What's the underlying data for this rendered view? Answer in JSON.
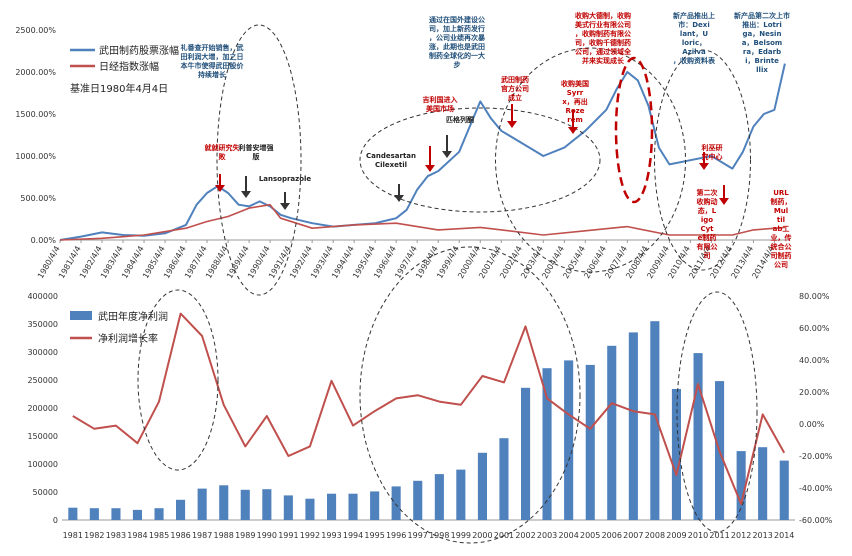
{
  "chart_data": [
    {
      "type": "line",
      "series": [
        {
          "name": "武田制药股票涨幅",
          "color": "#4f81bd",
          "points": [
            [
              "1980-04-04",
              0
            ],
            [
              "1981-04-04",
              40
            ],
            [
              "1982-04-04",
              90
            ],
            [
              "1983-04-04",
              60
            ],
            [
              "1984-04-04",
              50
            ],
            [
              "1985-04-04",
              80
            ],
            [
              "1986-04-04",
              180
            ],
            [
              "1986-10-04",
              420
            ],
            [
              "1987-04-04",
              560
            ],
            [
              "1987-10-04",
              640
            ],
            [
              "1988-04-04",
              560
            ],
            [
              "1988-10-04",
              420
            ],
            [
              "1989-04-04",
              400
            ],
            [
              "1989-10-04",
              460
            ],
            [
              "1990-04-04",
              400
            ],
            [
              "1990-10-04",
              300
            ],
            [
              "1991-04-04",
              260
            ],
            [
              "1992-04-04",
              200
            ],
            [
              "1993-04-04",
              160
            ],
            [
              "1994-04-04",
              180
            ],
            [
              "1995-04-04",
              200
            ],
            [
              "1996-04-04",
              260
            ],
            [
              "1996-10-04",
              360
            ],
            [
              "1997-04-04",
              600
            ],
            [
              "1997-10-04",
              760
            ],
            [
              "1998-04-04",
              820
            ],
            [
              "1999-04-04",
              1050
            ],
            [
              "1999-10-04",
              1350
            ],
            [
              "2000-04-04",
              1650
            ],
            [
              "2000-10-04",
              1450
            ],
            [
              "2001-04-04",
              1300
            ],
            [
              "2002-04-04",
              1150
            ],
            [
              "2003-04-04",
              1000
            ],
            [
              "2004-04-04",
              1100
            ],
            [
              "2005-04-04",
              1300
            ],
            [
              "2006-04-04",
              1550
            ],
            [
              "2006-10-04",
              1800
            ],
            [
              "2007-04-04",
              2000
            ],
            [
              "2007-10-04",
              1900
            ],
            [
              "2008-04-04",
              1600
            ],
            [
              "2008-10-04",
              1100
            ],
            [
              "2009-04-04",
              900
            ],
            [
              "2010-04-04",
              950
            ],
            [
              "2011-04-04",
              1000
            ],
            [
              "2012-04-04",
              850
            ],
            [
              "2012-10-04",
              1050
            ],
            [
              "2013-04-04",
              1350
            ],
            [
              "2013-10-04",
              1500
            ],
            [
              "2014-04-04",
              1550
            ],
            [
              "2014-10-04",
              2100
            ]
          ]
        },
        {
          "name": "日经指数涨幅",
          "color": "#c0504d",
          "points": [
            [
              "1980-04-04",
              0
            ],
            [
              "1982-04-04",
              20
            ],
            [
              "1984-04-04",
              60
            ],
            [
              "1986-04-04",
              140
            ],
            [
              "1987-04-04",
              220
            ],
            [
              "1988-04-04",
              280
            ],
            [
              "1989-04-04",
              380
            ],
            [
              "1990-04-04",
              420
            ],
            [
              "1990-10-04",
              260
            ],
            [
              "1992-04-04",
              140
            ],
            [
              "1994-04-04",
              180
            ],
            [
              "1996-04-04",
              200
            ],
            [
              "1998-04-04",
              120
            ],
            [
              "2000-04-04",
              150
            ],
            [
              "2003-04-04",
              60
            ],
            [
              "2005-04-04",
              110
            ],
            [
              "2007-04-04",
              160
            ],
            [
              "2009-04-04",
              60
            ],
            [
              "2012-04-04",
              60
            ],
            [
              "2013-04-04",
              120
            ],
            [
              "2014-10-04",
              150
            ]
          ]
        }
      ],
      "xlim": [
        "1980-04-04",
        "2014-12-31"
      ],
      "x_ticks": [
        "1980/4/4",
        "1981/4/4",
        "1982/4/4",
        "1983/4/4",
        "1984/4/4",
        "1985/4/4",
        "1986/4/4",
        "1987/4/4",
        "1988/4/4",
        "1989/4/4",
        "1990/4/4",
        "1991/4/4",
        "1992/4/4",
        "1993/4/4",
        "1994/4/4",
        "1995/4/4",
        "1996/4/4",
        "1997/4/4",
        "1998/4/4",
        "1999/4/4",
        "2000/4/4",
        "2001/4/4",
        "2002/4/4",
        "2003/4/4",
        "2004/4/4",
        "2005/4/4",
        "2006/4/4",
        "2007/4/4",
        "2008/4/4",
        "2009/4/4",
        "2010/4/4",
        "2011/4/4",
        "2012/4/4",
        "2013/4/4",
        "2014/4/4"
      ],
      "ylim": [
        0,
        2500
      ],
      "y_ticks": [
        "0.00%",
        "500.00%",
        "1000.00%",
        "1500.00%",
        "2000.00%",
        "2500.00%"
      ],
      "note": "基准日1980年4月4日",
      "annotations": [
        {
          "text": "礼番查开始销售，武田利润大增，加之日本牛市使得武田股价持续增长",
          "color": "#1f4e79"
        },
        {
          "text": "就就研究失败",
          "color": "#c00000"
        },
        {
          "text": "利普安增强版",
          "color": "#222222"
        },
        {
          "text": "Lansoprazole",
          "color": "#222222"
        },
        {
          "text": "Candesartan Cilexetil",
          "color": "#222222"
        },
        {
          "text": "吉利国进入美国市场",
          "color": "#c00000"
        },
        {
          "text": "匹格列酮",
          "color": "#222222"
        },
        {
          "text": "通过在国外建设公司，加上新药发行，公司业绩再次暴涨，此期也是武田制药全球化的一大步",
          "color": "#1f4e79"
        },
        {
          "text": "武田制药官方公司成立",
          "color": "#c00000"
        },
        {
          "text": "收购美国Syrrx，再出Rozerem",
          "color": "#c00000"
        },
        {
          "text": "收购大德制，收购美式行业有限公司，收购制药有限公司，收购千德制药公司，通过领域全并来实现成长",
          "color": "#c00000"
        },
        {
          "text": "新产品推出上市：Dexilant，Uloric，Azilva，收购资料表",
          "color": "#1f4e79"
        },
        {
          "text": "利巫研究中心",
          "color": "#c00000"
        },
        {
          "text": "新产品第二次上市推出：Lotriga，Nesina，Belsomra，Edarbi，Brintellix",
          "color": "#1f4e79"
        },
        {
          "text": "第二次收购动态，LigoCyte制药有限公司",
          "color": "#c00000"
        },
        {
          "text": "URL制药，Multilab工业，传统合公司制药公司",
          "color": "#c00000"
        }
      ]
    },
    {
      "type": "bar+line",
      "categories": [
        "1981",
        "1982",
        "1983",
        "1984",
        "1985",
        "1986",
        "1987",
        "1988",
        "1989",
        "1990",
        "1991",
        "1992",
        "1993",
        "1994",
        "1995",
        "1996",
        "1997",
        "1998",
        "1999",
        "2000",
        "2001",
        "2002",
        "2003",
        "2004",
        "2005",
        "2006",
        "2007",
        "2008",
        "2009",
        "2010",
        "2011",
        "2012",
        "2013",
        "2014"
      ],
      "series": [
        {
          "name": "武田年度净利润",
          "type": "bar",
          "axis": "left",
          "color": "#4f81bd",
          "values": [
            22000,
            21000,
            21000,
            18000,
            21000,
            36000,
            56000,
            62000,
            54000,
            55000,
            44000,
            38000,
            47000,
            47000,
            51000,
            60000,
            70000,
            82000,
            90000,
            120000,
            146000,
            236000,
            271000,
            285000,
            277000,
            311000,
            335000,
            355000,
            234000,
            298000,
            248000,
            123000,
            130000,
            106000
          ]
        },
        {
          "name": "净利润增长率",
          "type": "line",
          "axis": "right",
          "color": "#c0504d",
          "values": [
            5,
            -3,
            -1,
            -12,
            14,
            69,
            55,
            12,
            -14,
            5,
            -20,
            -14,
            27,
            -1,
            8,
            16,
            18,
            14,
            12,
            30,
            26,
            61,
            16,
            6,
            -3,
            13,
            8,
            6,
            -32,
            25,
            -17,
            -50,
            6,
            -18
          ]
        }
      ],
      "ylim_left": [
        0,
        400000
      ],
      "y_ticks_left": [
        "0",
        "50000",
        "100000",
        "150000",
        "200000",
        "250000",
        "300000",
        "350000",
        "400000"
      ],
      "ylim_right": [
        -60,
        80
      ],
      "y_ticks_right": [
        "-60.00%",
        "-40.00%",
        "-20.00%",
        "0.00%",
        "20.00%",
        "40.00%",
        "60.00%",
        "80.00%"
      ]
    }
  ]
}
